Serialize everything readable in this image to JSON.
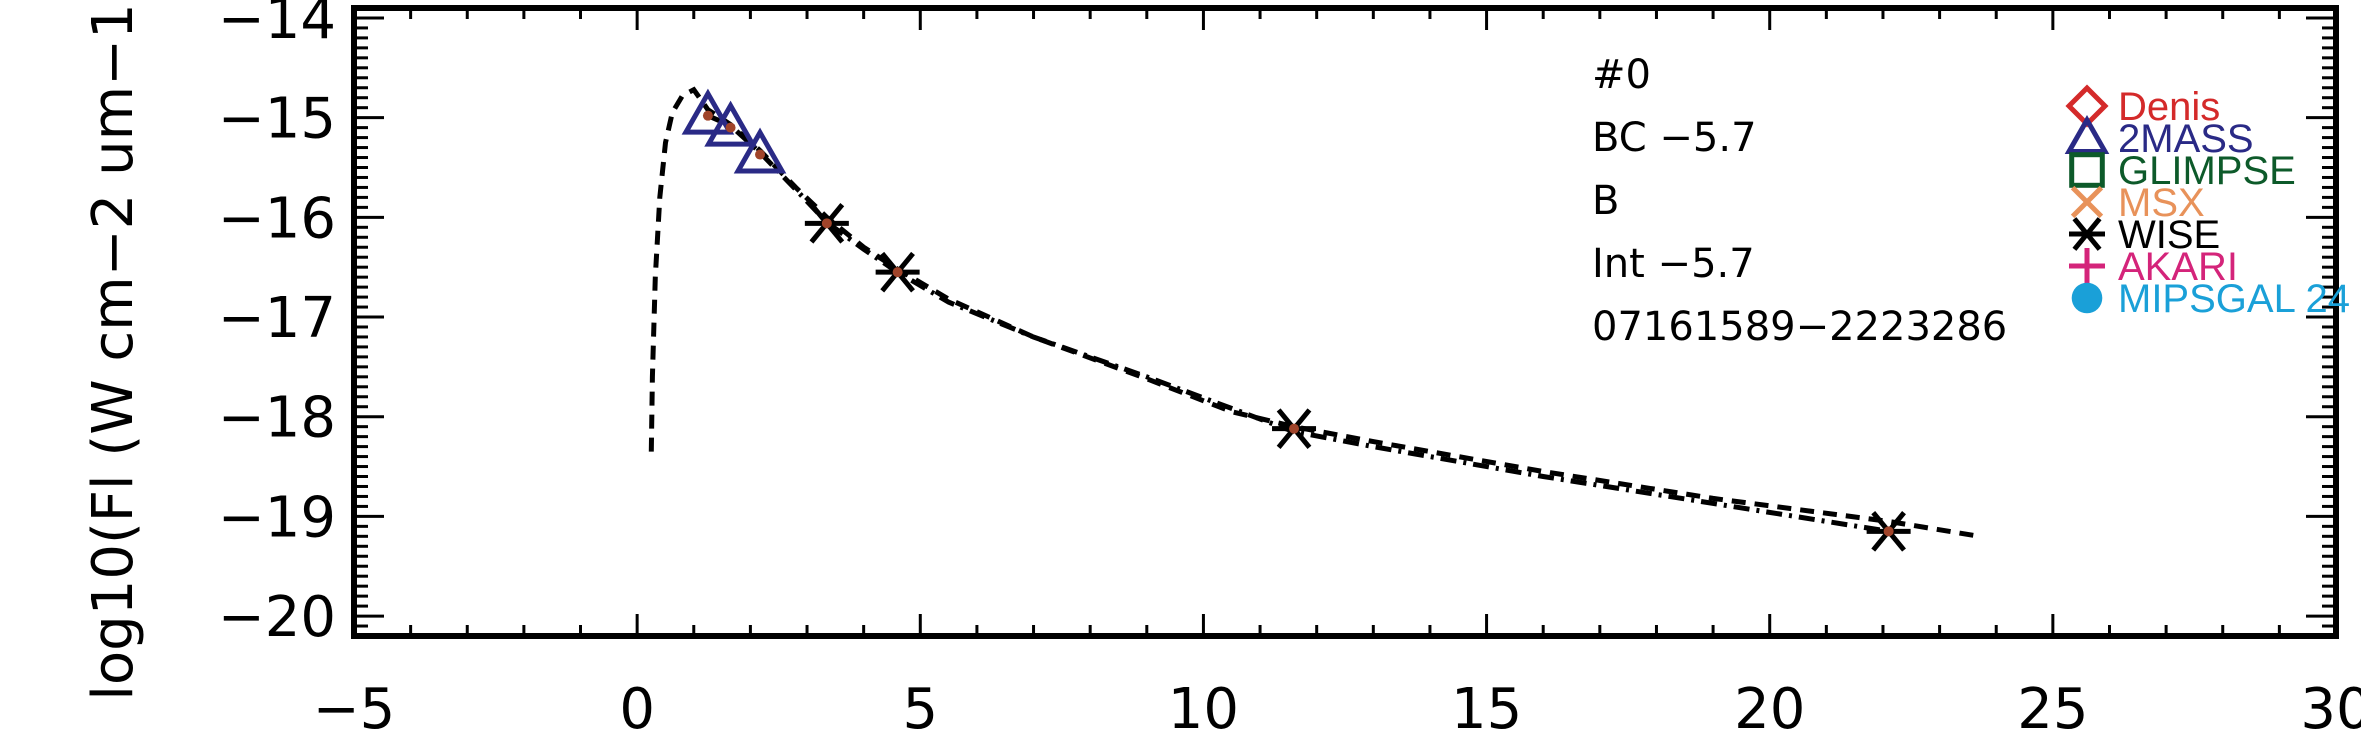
{
  "chart_data": {
    "type": "scatter",
    "title": "",
    "xlabel": "",
    "ylabel": "log10(Fl (W cm−2 um−1",
    "xlim": [
      -5,
      30
    ],
    "ylim": [
      -20.2,
      -13.9
    ],
    "x_ticks": [
      -5,
      0,
      5,
      10,
      15,
      20,
      25,
      30
    ],
    "x_tick_labels": [
      "−5",
      "0",
      "5",
      "10",
      "15",
      "20",
      "25",
      "30"
    ],
    "y_ticks": [
      -20,
      -19,
      -18,
      -17,
      -16,
      -15,
      -14
    ],
    "y_tick_labels": [
      "−20",
      "−19",
      "−18",
      "−17",
      "−16",
      "−15",
      "−14"
    ],
    "grid": false,
    "annotations": [
      "#0",
      "BC −5.7",
      "B",
      "Int −5.7",
      "07161589−2223286"
    ],
    "legend": {
      "placement": "top-right",
      "entries": [
        {
          "name": "Denis",
          "marker": "diamond",
          "color": "#d42a2a"
        },
        {
          "name": "2MASS",
          "marker": "triangle",
          "color": "#2a2a86"
        },
        {
          "name": "GLIMPSE",
          "marker": "square",
          "color": "#0d5a2a"
        },
        {
          "name": "MSX",
          "marker": "x",
          "color": "#e8925a"
        },
        {
          "name": "WISE",
          "marker": "asterisk",
          "color": "#000000"
        },
        {
          "name": "AKARI",
          "marker": "plus",
          "color": "#d4247a"
        },
        {
          "name": "MIPSGAL 24",
          "marker": "circle",
          "color": "#1aa0d8"
        }
      ]
    },
    "series": [
      {
        "name": "2MASS",
        "marker": "triangle",
        "color": "#2a2a86",
        "x": [
          1.25,
          1.65,
          2.17
        ],
        "y": [
          -14.98,
          -15.1,
          -15.37
        ]
      },
      {
        "name": "WISE",
        "marker": "asterisk",
        "color": "#000000",
        "x": [
          3.35,
          4.6,
          11.6,
          22.1
        ],
        "y": [
          -16.06,
          -16.55,
          -18.12,
          -19.15
        ]
      },
      {
        "marker": "dot",
        "color": "#a0442a",
        "x": [
          1.25,
          1.65,
          2.17,
          3.35,
          4.6,
          11.6,
          22.1
        ],
        "y": [
          -14.98,
          -15.1,
          -15.37,
          -16.06,
          -16.55,
          -18.12,
          -19.15
        ]
      }
    ],
    "lines": [
      {
        "style": "dashed",
        "color": "#000000",
        "x": [
          0.25,
          0.27,
          0.32,
          0.4,
          0.5,
          0.62,
          0.8,
          1.0,
          1.25,
          1.65,
          2.17,
          2.8,
          3.35,
          4.0,
          4.6,
          5.5,
          7.0,
          9.0,
          10.5,
          11.6,
          13.0,
          16.0,
          19.0,
          22.1,
          23.7
        ],
        "y": [
          -18.35,
          -17.6,
          -16.6,
          -15.8,
          -15.25,
          -14.95,
          -14.78,
          -14.72,
          -14.92,
          -15.07,
          -15.33,
          -15.7,
          -16.0,
          -16.3,
          -16.52,
          -16.82,
          -17.2,
          -17.62,
          -17.95,
          -18.1,
          -18.25,
          -18.55,
          -18.82,
          -19.05,
          -19.2
        ]
      },
      {
        "style": "dashdot",
        "color": "#000000",
        "x": [
          1.25,
          1.65,
          2.17,
          2.8,
          3.35,
          4.0,
          4.6,
          5.5,
          7.0,
          9.0,
          11.6,
          13.0,
          16.0,
          19.0,
          22.1
        ],
        "y": [
          -14.98,
          -15.08,
          -15.35,
          -15.72,
          -16.05,
          -16.32,
          -16.55,
          -16.85,
          -17.2,
          -17.6,
          -18.15,
          -18.3,
          -18.6,
          -18.87,
          -19.15
        ]
      }
    ]
  }
}
